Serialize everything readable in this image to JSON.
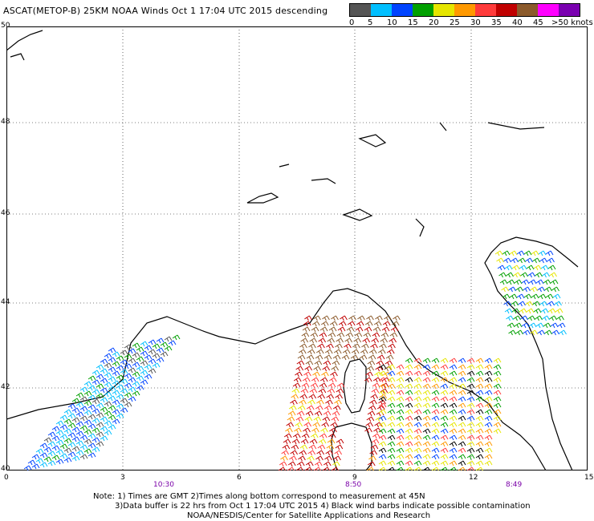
{
  "title": "ASCAT(METOP-B) 25KM NOAA Winds  Oct  1 17:04 UTC 2015 descending",
  "legend": {
    "colors": [
      "#555555",
      "#00bfff",
      "#0044ff",
      "#00a000",
      "#e6e600",
      "#ff9900",
      "#ff3b3b",
      "#c00000",
      "#8b5a2b",
      "#ff00ff",
      "#7a00b0"
    ],
    "labels": [
      "0",
      "5",
      "10",
      "15",
      "20",
      "25",
      "30",
      "35",
      "40",
      "45",
      ">50 knots"
    ]
  },
  "axes": {
    "lat_labels": [
      "50",
      "48",
      "46",
      "44",
      "42",
      "40"
    ],
    "lon_labels": [
      "0",
      "3",
      "6",
      "9",
      "12",
      "15"
    ]
  },
  "time_labels": [
    "10:30",
    "8:50",
    "8:49"
  ],
  "notes": [
    "Note: 1) Times are GMT 2)Times along bottom correspond to measurement at 45N",
    "3)Data buffer is 22 hrs from Oct  1 17:04 UTC 2015 4) Black wind barbs indicate possible contamination",
    "NOAA/NESDIS/Center for Satellite Applications and Research"
  ]
}
